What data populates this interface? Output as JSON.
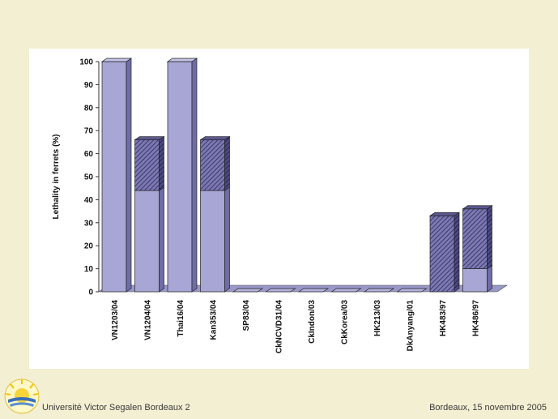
{
  "chart_data": {
    "type": "bar",
    "stacked": true,
    "ylabel": "Lethality in ferrets (%)",
    "xlabel": "",
    "ylim": [
      0,
      100
    ],
    "yticks": [
      0,
      10,
      20,
      30,
      40,
      50,
      60,
      70,
      80,
      90,
      100
    ],
    "categories": [
      "VN1203/04",
      "VN1204/04",
      "Thai16/04",
      "Kan353/04",
      "SP83/04",
      "CkNCVD31/04",
      "CkIndon/03",
      "CkKorea/03",
      "HK213/03",
      "DkAnyang/01",
      "HK483/97",
      "HK486/97"
    ],
    "series": [
      {
        "values": [
          100,
          44,
          100,
          44,
          0,
          0,
          0,
          0,
          0,
          0,
          0,
          10
        ],
        "color": "#a8a6d4",
        "pattern": "solid"
      },
      {
        "values": [
          0,
          22,
          0,
          22,
          0,
          0,
          0,
          0,
          0,
          0,
          33,
          26
        ],
        "color": "#6e6aa6",
        "pattern": "hatched"
      }
    ],
    "grid": false
  },
  "footer": {
    "left": "Université Victor Segalen Bordeaux 2",
    "right": "Bordeaux, 15 novembre 2005"
  }
}
